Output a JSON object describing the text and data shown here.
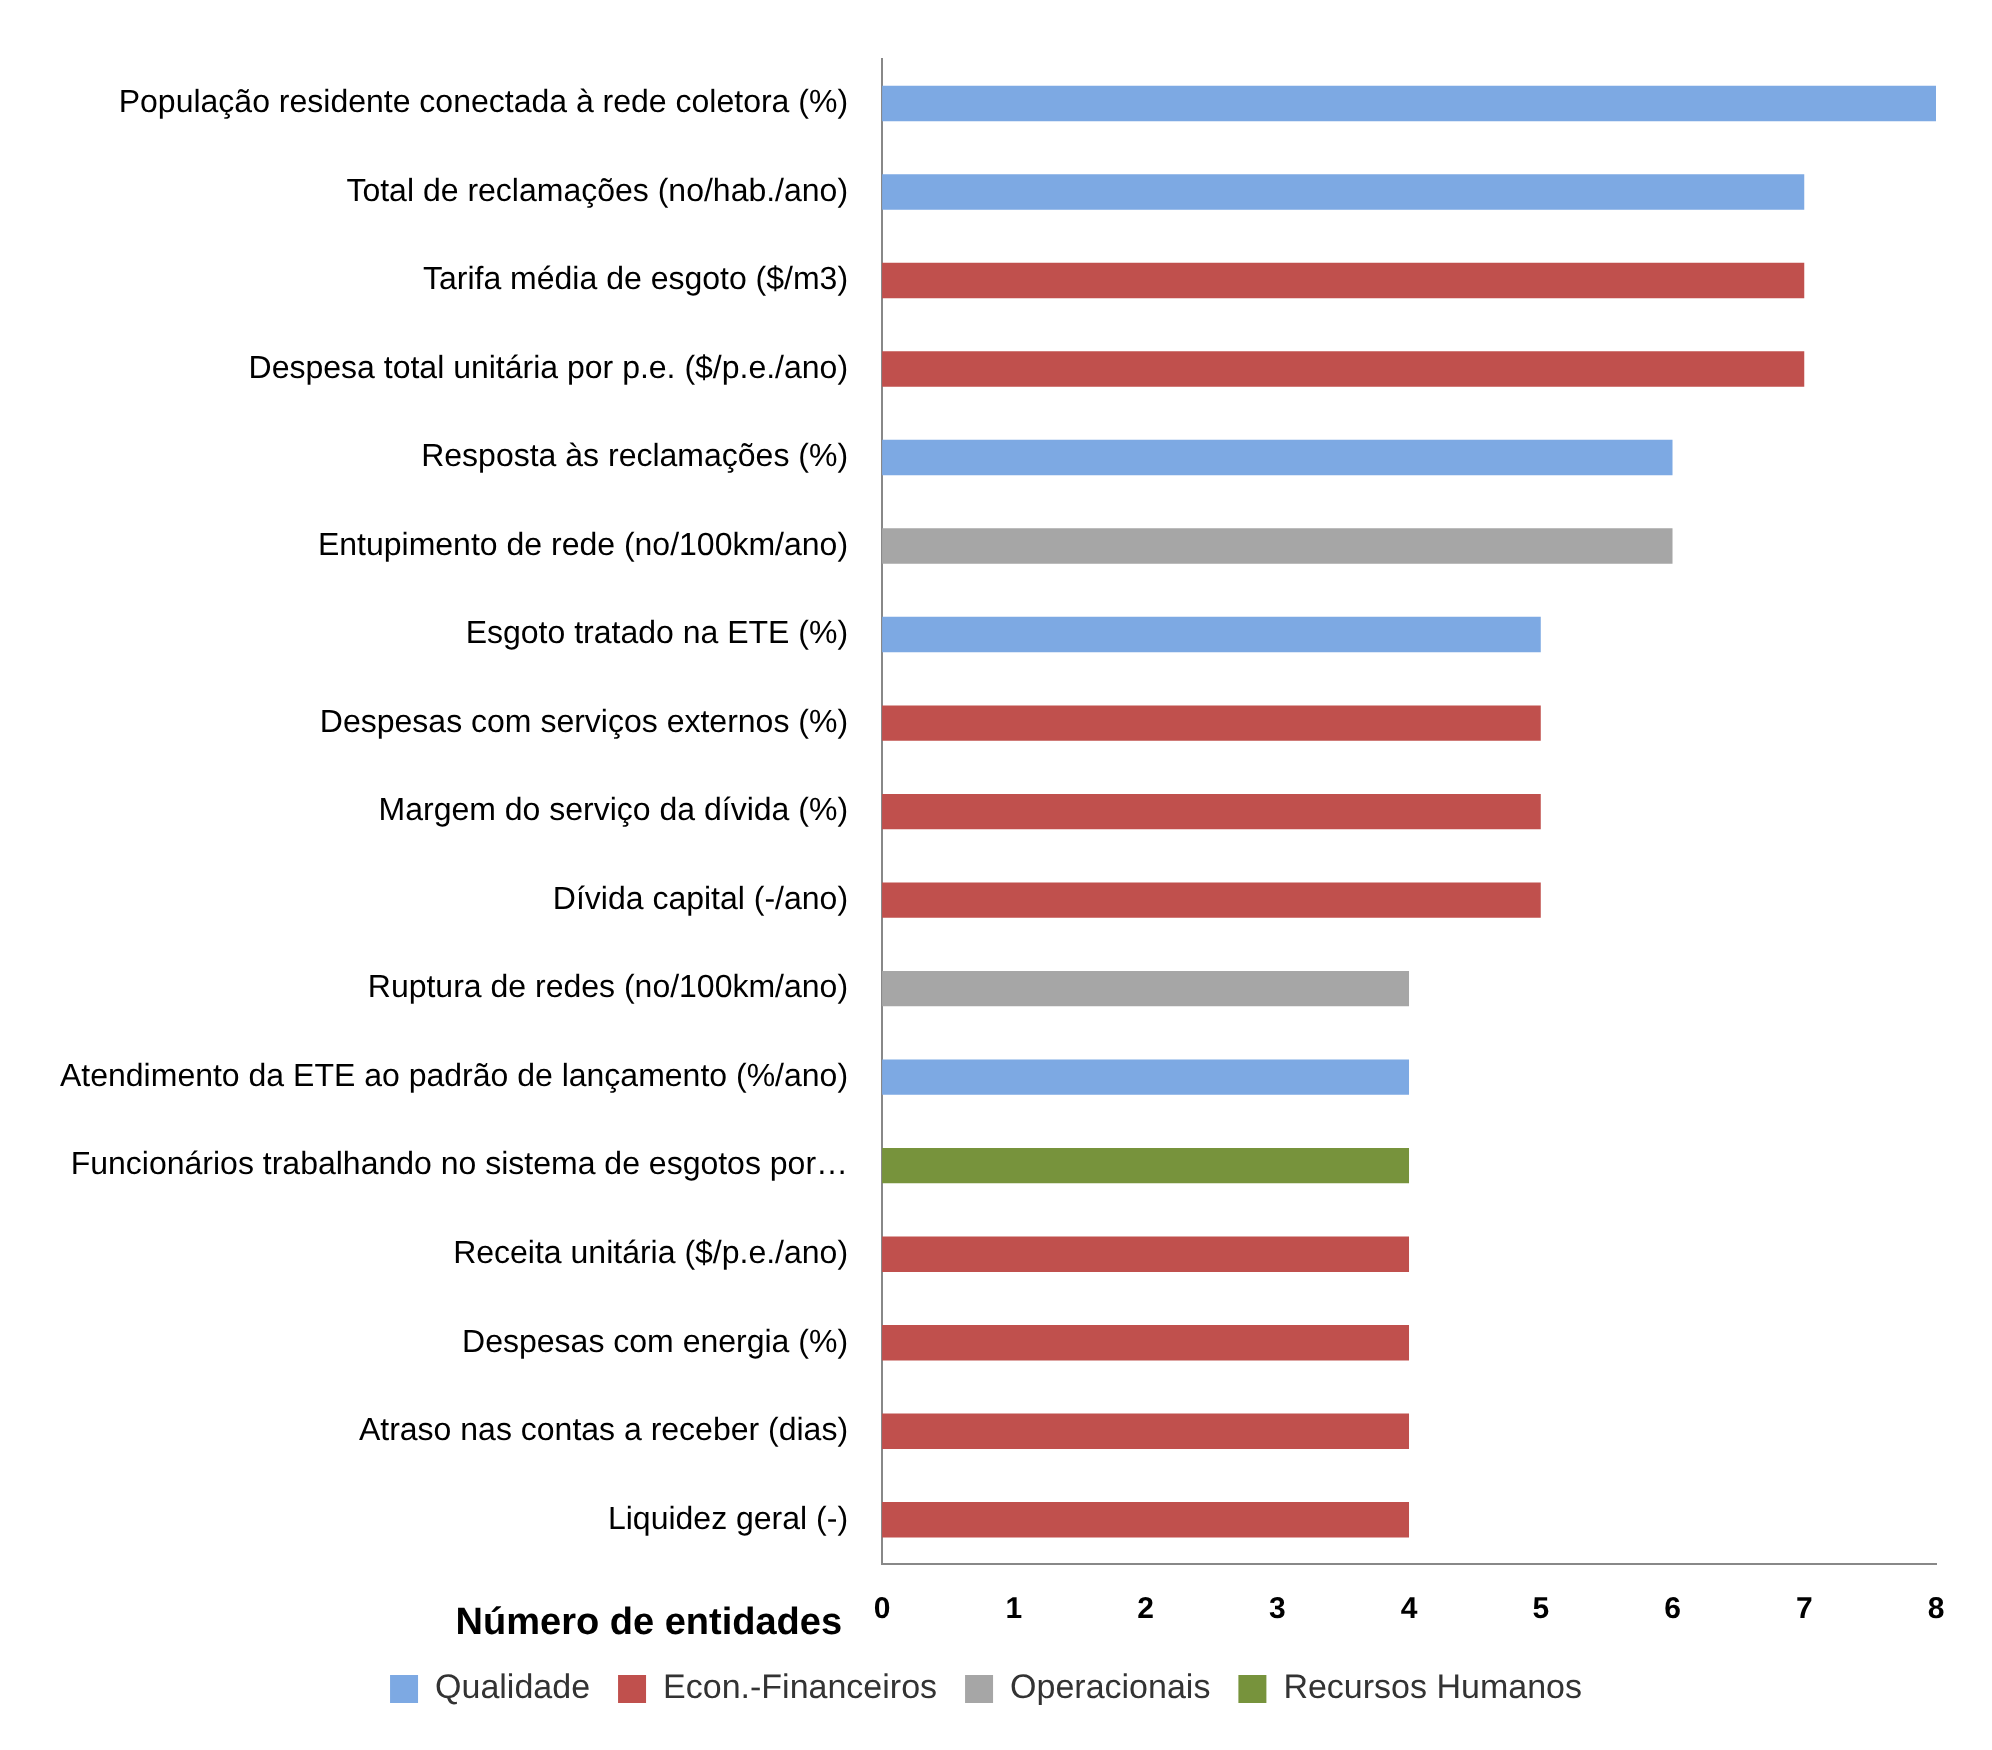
{
  "chart_data": {
    "type": "bar",
    "orientation": "horizontal",
    "stacked": true,
    "xlabel": "Número de entidades",
    "categories": [
      "População residente conectada à rede coletora (%)",
      "Total de reclamações (no/hab./ano)",
      "Tarifa média de esgoto ($/m3)",
      "Despesa total unitária por p.e. ($/p.e./ano)",
      "Resposta às reclamações (%)",
      "Entupimento de rede (no/100km/ano)",
      "Esgoto tratado na ETE (%)",
      "Despesas com serviços externos (%)",
      "Margem do serviço da dívida (%)",
      "Dívida capital (-/ano)",
      "Ruptura de redes (no/100km/ano)",
      "Atendimento da ETE ao padrão de lançamento (%/ano)",
      "Funcionários trabalhando no sistema de esgotos por…",
      "Receita unitária ($/p.e./ano)",
      "Despesas com energia (%)",
      "Atraso nas contas a receber (dias)",
      "Liquidez geral (-)"
    ],
    "series": [
      {
        "name": "Qualidade",
        "color": "#7da9e3",
        "values": [
          8,
          7,
          null,
          null,
          6,
          null,
          5,
          null,
          null,
          null,
          null,
          4,
          null,
          null,
          null,
          null,
          null
        ]
      },
      {
        "name": "Econ.-Financeiros",
        "color": "#c0504d",
        "values": [
          null,
          null,
          7,
          7,
          null,
          null,
          null,
          5,
          5,
          5,
          null,
          null,
          null,
          4,
          4,
          4,
          4
        ]
      },
      {
        "name": "Operacionais",
        "color": "#a6a6a6",
        "values": [
          null,
          null,
          null,
          null,
          null,
          6,
          null,
          null,
          null,
          null,
          4,
          null,
          null,
          null,
          null,
          null,
          null
        ]
      },
      {
        "name": "Recursos Humanos",
        "color": "#77933c",
        "values": [
          null,
          null,
          null,
          null,
          null,
          null,
          null,
          null,
          null,
          null,
          null,
          null,
          4,
          null,
          null,
          null,
          null
        ]
      }
    ],
    "xlim": [
      0,
      8
    ],
    "xticks": [
      0,
      1,
      2,
      3,
      4,
      5,
      6,
      7,
      8
    ],
    "grid": false,
    "legend": "bottom"
  }
}
